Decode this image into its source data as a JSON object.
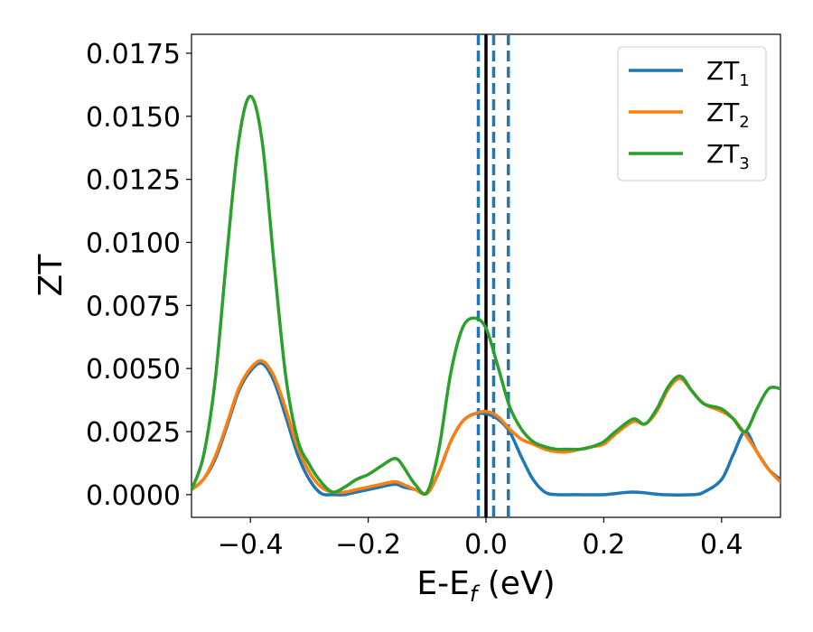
{
  "chart_data": {
    "type": "line",
    "xlabel_main": "E-E",
    "xlabel_sub": "f",
    "xlabel_unit": " (eV)",
    "ylabel": "ZT",
    "xlim": [
      -0.5,
      0.5
    ],
    "ylim": [
      -0.0009,
      0.01825
    ],
    "x_ticks": [
      -0.4,
      -0.2,
      0.0,
      0.2,
      0.4
    ],
    "x_tick_labels": [
      "−0.4",
      "−0.2",
      "0.0",
      "0.2",
      "0.4"
    ],
    "y_ticks": [
      0.0,
      0.0025,
      0.005,
      0.0075,
      0.01,
      0.0125,
      0.015,
      0.0175
    ],
    "y_tick_labels": [
      "0.0000",
      "0.0025",
      "0.0050",
      "0.0075",
      "0.0100",
      "0.0125",
      "0.0150",
      "0.0175"
    ],
    "grid": false,
    "legend_position": "top-right",
    "vertical_lines": [
      {
        "x": 0.0,
        "style": "solid",
        "color": "#000000"
      },
      {
        "x": -0.013,
        "style": "dashed",
        "color": "#1f77b4"
      },
      {
        "x": 0.013,
        "style": "dashed",
        "color": "#1f77b4"
      },
      {
        "x": 0.038,
        "style": "dashed",
        "color": "#1f77b4"
      }
    ],
    "series": [
      {
        "name": "ZT",
        "sub": "1",
        "color": "#1f77b4",
        "x": [
          -0.5,
          -0.48,
          -0.46,
          -0.44,
          -0.42,
          -0.4,
          -0.38,
          -0.36,
          -0.34,
          -0.32,
          -0.3,
          -0.28,
          -0.26,
          -0.24,
          -0.22,
          -0.2,
          -0.18,
          -0.16,
          -0.15,
          -0.14,
          -0.12,
          -0.1,
          -0.08,
          -0.06,
          -0.04,
          -0.02,
          0.0,
          0.02,
          0.04,
          0.06,
          0.08,
          0.1,
          0.12,
          0.15,
          0.2,
          0.25,
          0.3,
          0.35,
          0.37,
          0.4,
          0.42,
          0.44,
          0.46,
          0.48,
          0.5
        ],
        "y": [
          0.0002,
          0.0006,
          0.0014,
          0.0027,
          0.0041,
          0.0049,
          0.0052,
          0.0045,
          0.0031,
          0.0016,
          0.0006,
          5e-05,
          0.0,
          0.0,
          0.0001,
          0.0002,
          0.0003,
          0.0004,
          0.0004,
          0.0003,
          0.0002,
          5e-05,
          0.0009,
          0.0021,
          0.0029,
          0.0032,
          0.0032,
          0.003,
          0.0025,
          0.0015,
          0.0006,
          0.0001,
          0.0,
          0.0,
          0.0,
          0.0001,
          0.0,
          0.0,
          0.0001,
          0.0006,
          0.0016,
          0.0025,
          0.0017,
          0.001,
          0.0006
        ]
      },
      {
        "name": "ZT",
        "sub": "2",
        "color": "#ff7f0e",
        "x": [
          -0.5,
          -0.48,
          -0.46,
          -0.44,
          -0.42,
          -0.4,
          -0.38,
          -0.36,
          -0.34,
          -0.32,
          -0.3,
          -0.28,
          -0.26,
          -0.24,
          -0.22,
          -0.2,
          -0.18,
          -0.16,
          -0.15,
          -0.14,
          -0.12,
          -0.1,
          -0.08,
          -0.06,
          -0.04,
          -0.02,
          0.0,
          0.02,
          0.04,
          0.06,
          0.08,
          0.1,
          0.12,
          0.14,
          0.16,
          0.18,
          0.2,
          0.22,
          0.25,
          0.27,
          0.29,
          0.31,
          0.33,
          0.35,
          0.37,
          0.4,
          0.42,
          0.44,
          0.46,
          0.48,
          0.5
        ],
        "y": [
          0.0002,
          0.0006,
          0.0015,
          0.0028,
          0.0042,
          0.005,
          0.0053,
          0.0047,
          0.0034,
          0.0019,
          0.0009,
          0.0003,
          0.0001,
          0.0001,
          0.0002,
          0.0003,
          0.0004,
          0.0005,
          0.0005,
          0.0004,
          0.0002,
          5e-05,
          0.0009,
          0.0021,
          0.0029,
          0.0032,
          0.0033,
          0.0031,
          0.0026,
          0.0022,
          0.002,
          0.0018,
          0.0017,
          0.0017,
          0.0018,
          0.0019,
          0.002,
          0.0024,
          0.0029,
          0.0028,
          0.0033,
          0.0042,
          0.0046,
          0.0041,
          0.0036,
          0.0033,
          0.003,
          0.0024,
          0.0017,
          0.001,
          0.0005
        ]
      },
      {
        "name": "ZT",
        "sub": "3",
        "color": "#2ca02c",
        "x": [
          -0.5,
          -0.48,
          -0.46,
          -0.44,
          -0.42,
          -0.4,
          -0.38,
          -0.36,
          -0.34,
          -0.32,
          -0.3,
          -0.28,
          -0.26,
          -0.24,
          -0.22,
          -0.2,
          -0.18,
          -0.16,
          -0.15,
          -0.14,
          -0.12,
          -0.1,
          -0.08,
          -0.06,
          -0.04,
          -0.02,
          0.0,
          0.02,
          0.04,
          0.06,
          0.08,
          0.1,
          0.12,
          0.14,
          0.16,
          0.18,
          0.2,
          0.22,
          0.25,
          0.27,
          0.29,
          0.31,
          0.33,
          0.35,
          0.37,
          0.4,
          0.42,
          0.44,
          0.46,
          0.48,
          0.5
        ],
        "y": [
          0.0002,
          0.0015,
          0.0045,
          0.0095,
          0.014,
          0.0158,
          0.014,
          0.0092,
          0.0047,
          0.0022,
          0.0012,
          0.0005,
          0.0001,
          0.0003,
          0.0006,
          0.0008,
          0.0011,
          0.0014,
          0.0014,
          0.0011,
          0.0004,
          0.0001,
          0.0018,
          0.0048,
          0.0066,
          0.007,
          0.0066,
          0.0051,
          0.0035,
          0.0026,
          0.0021,
          0.0019,
          0.0018,
          0.0018,
          0.0018,
          0.0019,
          0.0021,
          0.0025,
          0.003,
          0.0028,
          0.0034,
          0.0043,
          0.0047,
          0.0041,
          0.0036,
          0.0034,
          0.003,
          0.0025,
          0.0034,
          0.0042,
          0.0042
        ]
      }
    ]
  }
}
